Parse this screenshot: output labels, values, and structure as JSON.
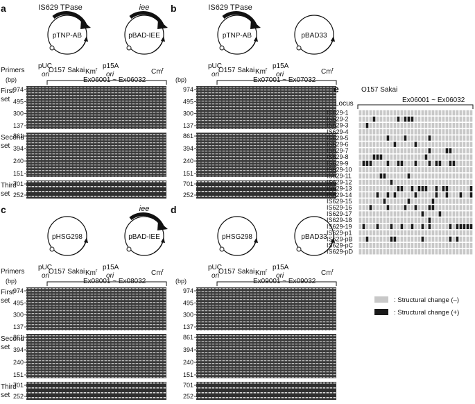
{
  "panels": [
    {
      "letter": "a",
      "tpase_label": "IS629 TPase",
      "left_plasmid": "pTNP-AB",
      "right_top_label": "iee",
      "right_plasmid": "pBAD-IEE",
      "left_ori1": "pUC",
      "left_ori2": "ori",
      "left_marker": "Km",
      "right_ori1": "p15A",
      "right_ori2": "ori",
      "right_marker": "Cm",
      "primers": "Primers",
      "strain": "O157 Sakai",
      "range": "Ex06001 ~ Ex06032",
      "bp": "(bp)",
      "first": [
        "First",
        "set"
      ],
      "second": [
        "Second",
        "set"
      ],
      "third": [
        "Third",
        "set"
      ],
      "first_bp": [
        "974",
        "495",
        "300",
        "137"
      ],
      "second_bp": [
        "861",
        "394",
        "240",
        "151"
      ],
      "third_bp": [
        "701",
        "252"
      ]
    },
    {
      "letter": "b",
      "tpase_label": "IS629 TPase",
      "left_plasmid": "pTNP-AB",
      "right_top_label": "",
      "right_plasmid": "pBAD33",
      "left_ori1": "pUC",
      "left_ori2": "ori",
      "left_marker": "Km",
      "right_ori1": "p15A",
      "right_ori2": "ori",
      "right_marker": "Cm",
      "primers": "",
      "strain": "O157 Sakai",
      "range": "Ex07001 ~ Ex07032",
      "bp": "(bp)",
      "first": [
        "",
        ""
      ],
      "second": [
        "",
        ""
      ],
      "third": [
        "",
        ""
      ],
      "first_bp": [
        "974",
        "495",
        "300",
        "137"
      ],
      "second_bp": [
        "861",
        "394",
        "240",
        "151"
      ],
      "third_bp": [
        "701",
        "252"
      ]
    },
    {
      "letter": "c",
      "tpase_label": "",
      "left_plasmid": "pHSG298",
      "right_top_label": "iee",
      "right_plasmid": "pBAD-IEE",
      "left_ori1": "pUC",
      "left_ori2": "ori",
      "left_marker": "Km",
      "right_ori1": "p15A",
      "right_ori2": "ori",
      "right_marker": "Cm",
      "primers": "Primers",
      "strain": "O157 Sakai",
      "range": "Ex08001 ~ Ex08032",
      "bp": "(bp)",
      "first": [
        "First",
        "set"
      ],
      "second": [
        "Second",
        "set"
      ],
      "third": [
        "Third",
        "set"
      ],
      "first_bp": [
        "974",
        "495",
        "300",
        "137"
      ],
      "second_bp": [
        "861",
        "394",
        "240",
        "151"
      ],
      "third_bp": [
        "701",
        "252"
      ]
    },
    {
      "letter": "d",
      "tpase_label": "",
      "left_plasmid": "pHSG298",
      "right_top_label": "",
      "right_plasmid": "pBAD33",
      "left_ori1": "pUC",
      "left_ori2": "ori",
      "left_marker": "Km",
      "right_ori1": "p15A",
      "right_ori2": "ori",
      "right_marker": "Cm",
      "primers": "",
      "strain": "O157 Sakai",
      "range": "Ex09001 ~ Ex09032",
      "bp": "(bp)",
      "first": [
        "",
        ""
      ],
      "second": [
        "",
        ""
      ],
      "third": [
        "",
        ""
      ],
      "first_bp": [
        "974",
        "495",
        "300",
        "137"
      ],
      "second_bp": [
        "861",
        "394",
        "240",
        "151"
      ],
      "third_bp": [
        "701",
        "252"
      ]
    }
  ],
  "panel_e": {
    "letter": "e",
    "strain": "O157 Sakai",
    "range": "Ex06001 ~ Ex06032",
    "locus_header": "Locus",
    "loci": [
      "IS629-1",
      "IS629-2",
      "IS629-3",
      "IS629-4",
      "IS629-5",
      "IS629-6",
      "IS629-7",
      "IS629-8",
      "IS629-9",
      "IS629-10",
      "IS629-11",
      "IS629-12",
      "IS629-13",
      "IS629-14",
      "IS629-15",
      "IS629-16",
      "IS629-17",
      "IS629-18",
      "IS629-19",
      "IS629-p1",
      "IS629-pB",
      "IS629-pC",
      "IS629-pD"
    ],
    "columns": 33,
    "changes": [
      [],
      [
        4,
        11,
        13,
        14,
        15
      ],
      [
        2
      ],
      [],
      [
        8,
        13,
        20
      ],
      [
        10,
        16
      ],
      [
        20,
        25,
        26
      ],
      [
        4,
        5,
        6,
        19
      ],
      [
        1,
        2,
        3,
        8,
        11,
        12,
        16,
        20,
        22,
        23,
        26,
        27
      ],
      [],
      [
        6,
        7,
        14
      ],
      [
        9
      ],
      [
        11,
        12,
        15,
        17,
        18,
        19,
        22,
        24,
        25,
        32
      ],
      [
        5,
        8,
        10,
        16,
        22,
        25,
        29,
        32
      ],
      [
        7,
        14,
        21
      ],
      [
        3,
        8,
        13,
        16,
        20,
        21
      ],
      [
        18,
        23
      ],
      [
        20
      ],
      [
        1,
        5,
        9,
        12,
        15,
        18,
        20,
        26,
        28,
        29,
        30,
        31,
        32
      ],
      [],
      [
        2,
        9,
        10,
        18,
        26,
        28
      ],
      [],
      []
    ],
    "colors": {
      "neg": "#c8c8c8",
      "pos": "#1a1a1a"
    },
    "legend": [
      {
        "symbol": "neg",
        "label": ": Structural change (–)"
      },
      {
        "symbol": "pos",
        "label": ": Structural change (+)"
      }
    ]
  }
}
